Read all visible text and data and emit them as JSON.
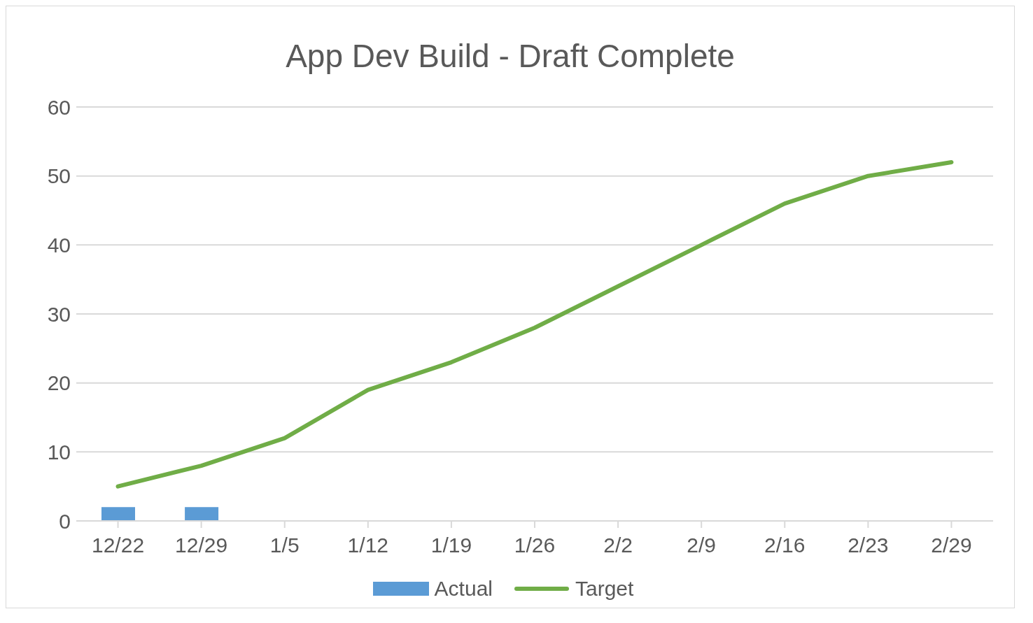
{
  "chart_data": {
    "type": "bar",
    "title": "App Dev Build - Draft Complete",
    "categories": [
      "12/22",
      "12/29",
      "1/5",
      "1/12",
      "1/19",
      "1/26",
      "2/2",
      "2/9",
      "2/16",
      "2/23",
      "2/29"
    ],
    "series": [
      {
        "name": "Actual",
        "color": "#5b9bd5",
        "values": [
          2,
          2,
          null,
          null,
          null,
          null,
          null,
          null,
          null,
          null,
          null
        ]
      },
      {
        "name": "Target",
        "type": "line",
        "color": "#70ad47",
        "values": [
          5,
          8,
          12,
          19,
          23,
          28,
          34,
          40,
          46,
          50,
          52
        ]
      }
    ],
    "ylim": [
      0,
      60
    ],
    "yticks": [
      0,
      10,
      20,
      30,
      40,
      50,
      60
    ],
    "grid": "y",
    "legend": "bottom",
    "marker": "none",
    "line_style": "solid"
  }
}
